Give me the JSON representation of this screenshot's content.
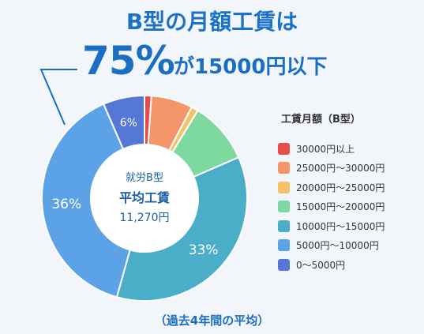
{
  "header": {
    "title": "B型の月額工賃は",
    "highlight": "75%",
    "highlight_rest": "が15000円以下"
  },
  "center": {
    "line1": "就労B型",
    "line2": "平均工賃",
    "line3": "11,270円"
  },
  "footer": "（過去4年間の平均）",
  "chart_data": {
    "type": "pie",
    "variant": "donut",
    "legend_title": "工賃月額（B型）",
    "legend_placement": "right",
    "slices": [
      {
        "label": "30000円以上",
        "value": 1,
        "color": "#e84b4b",
        "display": ""
      },
      {
        "label": "25000円〜30000円",
        "value": 6,
        "color": "#f5956a",
        "display": ""
      },
      {
        "label": "20000円〜25000円",
        "value": 1,
        "color": "#f4c26a",
        "display": ""
      },
      {
        "label": "15000円〜20000円",
        "value": 9,
        "color": "#7ed9a0",
        "display": ""
      },
      {
        "label": "10000円〜15000円",
        "value": 33,
        "color": "#4aaec9",
        "display": "33%"
      },
      {
        "label": "5000円〜10000円",
        "value": 36,
        "color": "#5ba3e6",
        "display": "36%"
      },
      {
        "label": "0〜5000円",
        "value": 6,
        "color": "#5577d6",
        "display": "6%"
      }
    ]
  }
}
